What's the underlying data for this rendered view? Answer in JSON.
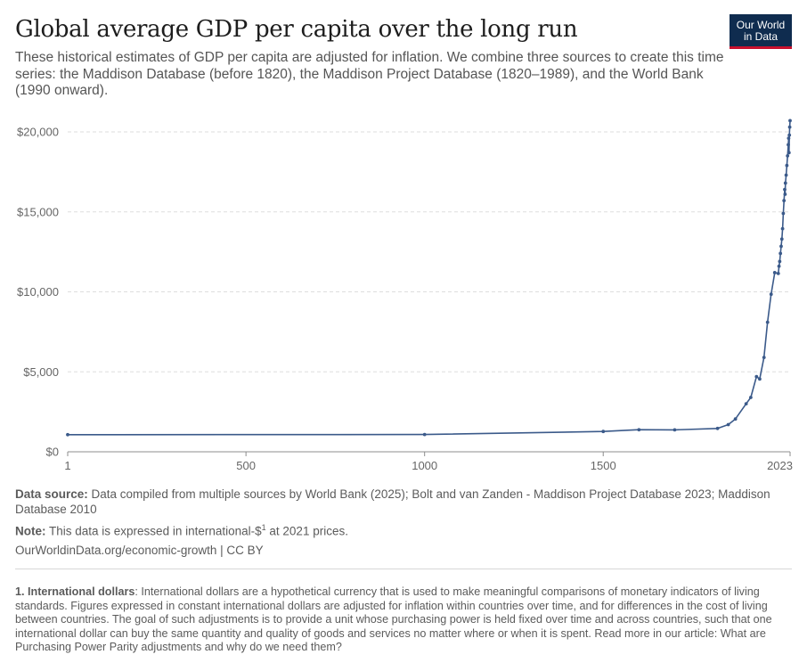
{
  "header": {
    "title": "Global average GDP per capita over the long run",
    "subtitle": "These historical estimates of GDP per capita are adjusted for inflation. We combine three sources to create this time series: the Maddison Database (before 1820), the Maddison Project Database (1820–1989), and the World Bank (1990 onward).",
    "logo_line1": "Our World",
    "logo_line2": "in Data"
  },
  "colors": {
    "line": "#3b5a8a",
    "logo_bg": "#0f2c4f",
    "logo_accent": "#c8102e",
    "grid": "#dddddd"
  },
  "chart_data": {
    "type": "line",
    "title": "Global average GDP per capita over the long run",
    "xlabel": "",
    "ylabel": "",
    "xlim": [
      1,
      2023
    ],
    "ylim": [
      0,
      20000
    ],
    "x_ticks": [
      "1",
      "500",
      "1000",
      "1500",
      "2023"
    ],
    "y_ticks": [
      "$0",
      "$5,000",
      "$10,000",
      "$15,000",
      "$20,000"
    ],
    "grid": "horizontal dashed",
    "legend": "none",
    "series": [
      {
        "x": [
          1,
          1000,
          1500,
          1600,
          1700,
          1820,
          1850,
          1870,
          1900,
          1913,
          1929,
          1938,
          1950,
          1960,
          1970,
          1980,
          1990,
          1992,
          1994,
          1996,
          1998,
          2000,
          2002,
          2004,
          2006,
          2008,
          2009,
          2010,
          2012,
          2014,
          2016,
          2018,
          2019,
          2020,
          2021,
          2022,
          2023
        ],
        "y": [
          1070,
          1080,
          1270,
          1380,
          1370,
          1460,
          1700,
          2050,
          3000,
          3400,
          4700,
          4550,
          5900,
          8100,
          9850,
          11200,
          11150,
          11600,
          11900,
          12400,
          12850,
          13300,
          13950,
          14900,
          15700,
          16400,
          16100,
          16800,
          17300,
          17900,
          18500,
          19200,
          19600,
          18700,
          19800,
          20300,
          20700
        ]
      }
    ]
  },
  "footer": {
    "source_label": "Data source:",
    "source_text": " Data compiled from multiple sources by World Bank (2025); Bolt and van Zanden - Maddison Project Database 2023; Maddison Database 2010",
    "note_label": "Note:",
    "note_text_before": " This data is expressed in international-$",
    "note_superscript": "1",
    "note_text_after": " at 2021 prices.",
    "url": "OurWorldinData.org/economic-growth | CC BY"
  },
  "footnote": {
    "label": "1. International dollars",
    "text": ": International dollars are a hypothetical currency that is used to make meaningful comparisons of monetary indicators of living standards. Figures expressed in constant international dollars are adjusted for inflation within countries over time, and for differences in the cost of living between countries. The goal of such adjustments is to provide a unit whose purchasing power is held fixed over time and across countries, such that one international dollar can buy the same quantity and quality of goods and services no matter where or when it is spent. Read more in our article: What are Purchasing Power Parity adjustments and why do we need them?"
  }
}
